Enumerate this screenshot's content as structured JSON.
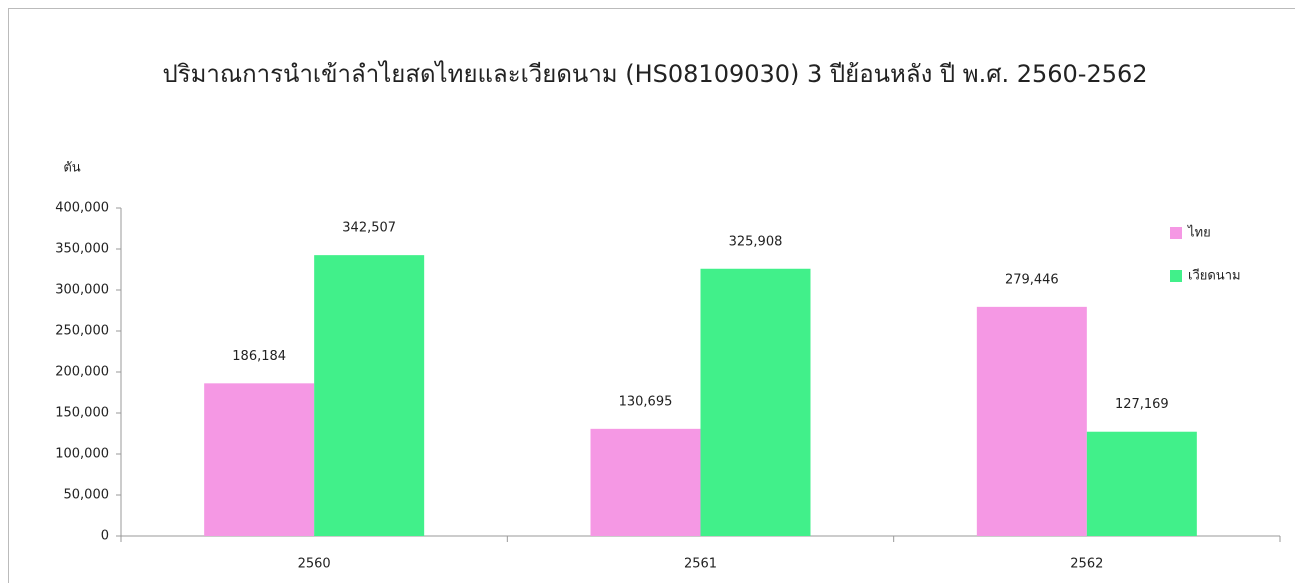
{
  "chart_data": {
    "type": "bar",
    "title": "ปริมาณการนำเข้าลำไยสดไทยและเวียดนาม (HS08109030) 3 ปีย้อนหลัง ปี พ.ศ. 2560-2562",
    "y_label": "ตัน",
    "categories": [
      "2560",
      "2561",
      "2562"
    ],
    "series": [
      {
        "name": "ไทย",
        "color": "#f598e4",
        "values": [
          186184,
          130695,
          279446
        ],
        "value_labels": [
          "186,184",
          "130,695",
          "279,446"
        ]
      },
      {
        "name": "เวียดนาม",
        "color": "#41f08a",
        "values": [
          342507,
          325908,
          127169
        ],
        "value_labels": [
          "342,507",
          "325,908",
          "127,169"
        ]
      }
    ],
    "ylim": [
      0,
      400000
    ],
    "yticks": [
      0,
      {
        "value": 50000,
        "label": "50,000"
      },
      {
        "value": 100000,
        "label": "100,000"
      },
      {
        "value": 150000,
        "label": "150,000"
      },
      {
        "value": 200000,
        "label": "200,000"
      },
      {
        "value": 250000,
        "label": "250,000"
      },
      {
        "value": 300000,
        "label": "300,000"
      },
      {
        "value": 350000,
        "label": "350,000"
      },
      {
        "value": 400000,
        "label": "400,000"
      }
    ],
    "grid": false,
    "legend": "right"
  }
}
